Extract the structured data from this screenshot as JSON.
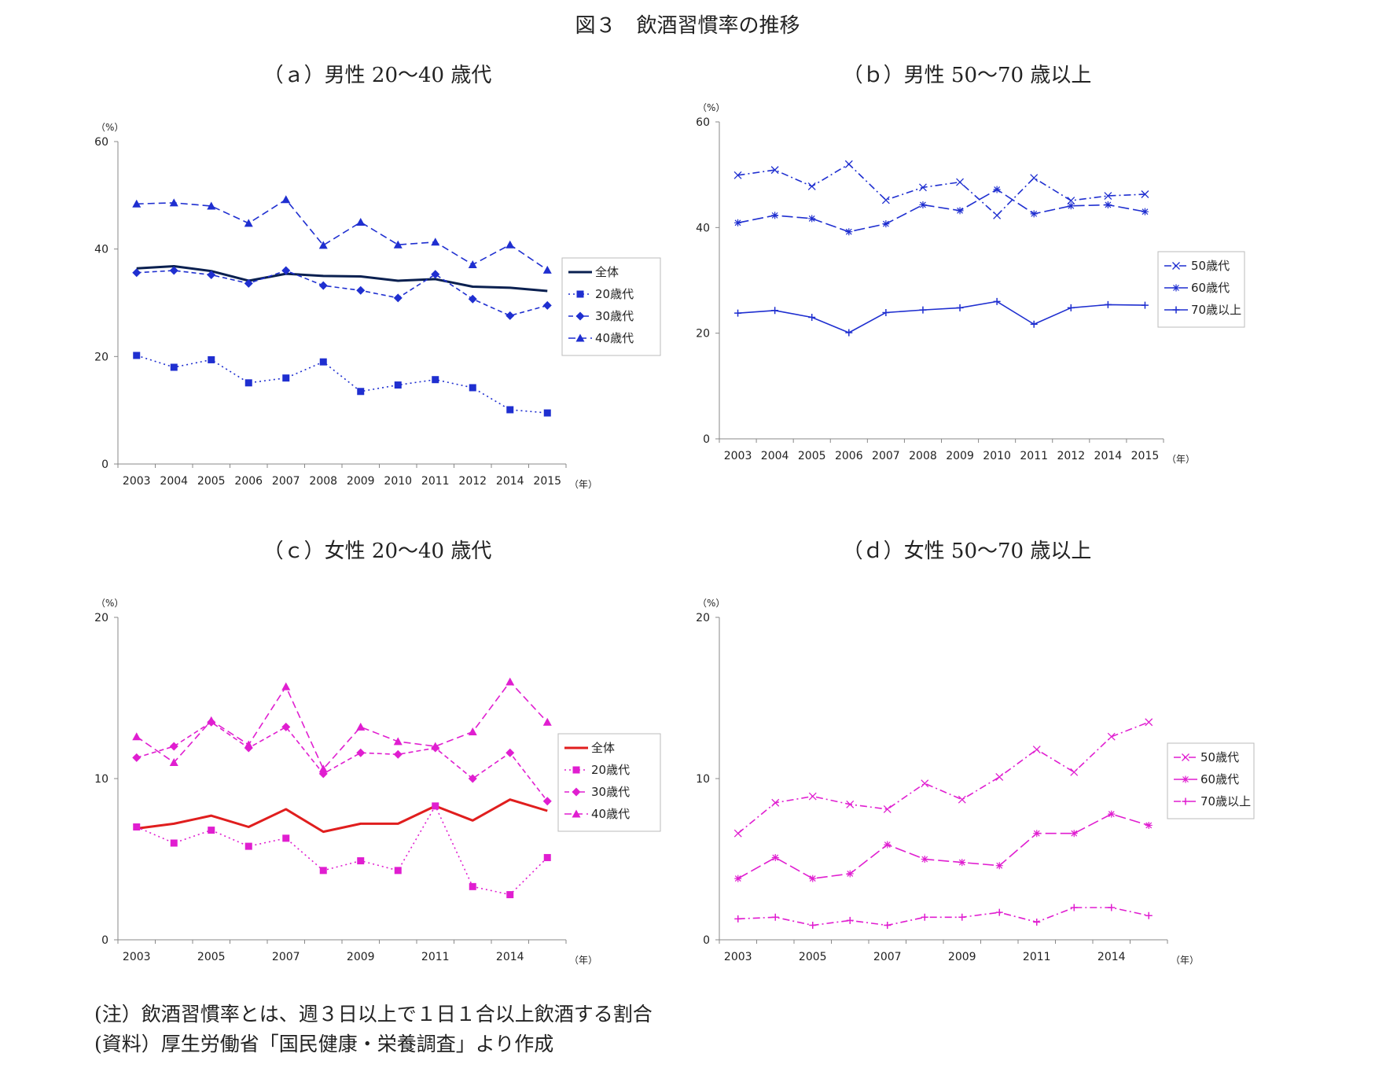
{
  "figure_title": "図３　飲酒習慣率の推移",
  "notes": {
    "note1": "(注）飲酒習慣率とは、週３日以上で１日１合以上飲酒する割合",
    "note2": "(資料）厚生労働省「国民健康・栄養調査」より作成"
  },
  "colors": {
    "navy": "#0a2050",
    "blue": "#1f2fd0",
    "red": "#e01e1e",
    "magenta": "#e01ed0"
  },
  "chart_data": [
    {
      "id": "a",
      "type": "line",
      "title": "（ａ）男性 20～40 歳代",
      "ylabel": "（%）",
      "xlabel": "（年）",
      "ylim": [
        0,
        60
      ],
      "yticks": [
        0,
        20,
        40,
        60
      ],
      "categories": [
        "2003",
        "2004",
        "2005",
        "2006",
        "2007",
        "2008",
        "2009",
        "2010",
        "2011",
        "2012",
        "2014",
        "2015"
      ],
      "xtick_labels": [
        "2003",
        "2004",
        "2005",
        "2006",
        "2007",
        "2008",
        "2009",
        "2010",
        "2011",
        "2012",
        "2014",
        "2015"
      ],
      "legend": "right",
      "series": [
        {
          "name": "全体",
          "color": "#0a2050",
          "dash": "solid",
          "marker": "none",
          "values": [
            36.4,
            36.8,
            35.9,
            34.1,
            35.4,
            35.0,
            34.9,
            34.1,
            34.4,
            33.0,
            32.8,
            32.2
          ]
        },
        {
          "name": "20歳代",
          "color": "#1f2fd0",
          "dash": "dot",
          "marker": "square",
          "values": [
            20.2,
            18.0,
            19.4,
            15.1,
            16.0,
            19.0,
            13.5,
            14.7,
            15.7,
            14.2,
            10.1,
            9.5
          ]
        },
        {
          "name": "30歳代",
          "color": "#1f2fd0",
          "dash": "shortdash",
          "marker": "diamond",
          "values": [
            35.6,
            36.0,
            35.2,
            33.6,
            36.0,
            33.2,
            32.3,
            30.9,
            35.3,
            30.7,
            27.6,
            29.5
          ]
        },
        {
          "name": "40歳代",
          "color": "#1f2fd0",
          "dash": "dash",
          "marker": "triangle",
          "values": [
            48.4,
            48.6,
            48.0,
            44.8,
            49.2,
            40.7,
            45.0,
            40.8,
            41.3,
            37.1,
            40.8,
            36.1
          ]
        }
      ]
    },
    {
      "id": "b",
      "type": "line",
      "title": "（ｂ）男性 50～70 歳以上",
      "ylabel": "（%）",
      "xlabel": "（年）",
      "ylim": [
        0,
        60
      ],
      "yticks": [
        0,
        20,
        40,
        60
      ],
      "categories": [
        "2003",
        "2004",
        "2005",
        "2006",
        "2007",
        "2008",
        "2009",
        "2010",
        "2011",
        "2012",
        "2014",
        "2015"
      ],
      "xtick_labels": [
        "2003",
        "2004",
        "2005",
        "2006",
        "2007",
        "2008",
        "2009",
        "2010",
        "2011",
        "2012",
        "2014",
        "2015"
      ],
      "legend": "right",
      "series": [
        {
          "name": "50歳代",
          "color": "#1f2fd0",
          "dash": "dashdot",
          "marker": "x",
          "values": [
            49.9,
            50.9,
            47.8,
            52.0,
            45.2,
            47.6,
            48.6,
            42.3,
            49.4,
            45.1,
            46.0,
            46.3
          ]
        },
        {
          "name": "60歳代",
          "color": "#1f2fd0",
          "dash": "longdash",
          "marker": "star",
          "values": [
            40.9,
            42.3,
            41.7,
            39.2,
            40.7,
            44.3,
            43.2,
            47.2,
            42.6,
            44.1,
            44.3,
            43.0
          ]
        },
        {
          "name": "70歳以上",
          "color": "#1f2fd0",
          "dash": "solid",
          "marker": "plus",
          "values": [
            23.8,
            24.3,
            23.0,
            20.1,
            23.9,
            24.4,
            24.8,
            26.0,
            21.7,
            24.8,
            25.4,
            25.3
          ]
        }
      ]
    },
    {
      "id": "c",
      "type": "line",
      "title": "（ｃ）女性 20～40 歳代",
      "ylabel": "（%）",
      "xlabel": "（年）",
      "ylim": [
        0,
        20
      ],
      "yticks": [
        0,
        10,
        20
      ],
      "categories": [
        "2003",
        "2004",
        "2005",
        "2006",
        "2007",
        "2008",
        "2009",
        "2010",
        "2011",
        "2012",
        "2014",
        "2015"
      ],
      "xtick_labels": [
        "2003",
        "",
        "2005",
        "",
        "2007",
        "",
        "2009",
        "",
        "2011",
        "",
        "2014",
        ""
      ],
      "legend": "right",
      "series": [
        {
          "name": "全体",
          "color": "#e01e1e",
          "dash": "solid",
          "marker": "none",
          "values": [
            6.9,
            7.2,
            7.7,
            7.0,
            8.1,
            6.7,
            7.2,
            7.2,
            8.3,
            7.4,
            8.7,
            8.0
          ]
        },
        {
          "name": "20歳代",
          "color": "#e01ed0",
          "dash": "dot",
          "marker": "square",
          "values": [
            7.0,
            6.0,
            6.8,
            5.8,
            6.3,
            4.3,
            4.9,
            4.3,
            8.3,
            3.3,
            2.8,
            5.1
          ]
        },
        {
          "name": "30歳代",
          "color": "#e01ed0",
          "dash": "shortdash",
          "marker": "diamond",
          "values": [
            11.3,
            12.0,
            13.5,
            11.9,
            13.2,
            10.3,
            11.6,
            11.5,
            11.9,
            10.0,
            11.6,
            8.6
          ]
        },
        {
          "name": "40歳代",
          "color": "#e01ed0",
          "dash": "dash",
          "marker": "triangle",
          "values": [
            12.6,
            11.0,
            13.6,
            12.1,
            15.7,
            10.6,
            13.2,
            12.3,
            12.0,
            12.9,
            16.0,
            13.5
          ]
        }
      ]
    },
    {
      "id": "d",
      "type": "line",
      "title": "（ｄ）女性 50～70 歳以上",
      "ylabel": "（%）",
      "xlabel": "（年）",
      "ylim": [
        0,
        20
      ],
      "yticks": [
        0,
        10,
        20
      ],
      "categories": [
        "2003",
        "2004",
        "2005",
        "2006",
        "2007",
        "2008",
        "2009",
        "2010",
        "2011",
        "2012",
        "2014",
        "2015"
      ],
      "xtick_labels": [
        "2003",
        "",
        "2005",
        "",
        "2007",
        "",
        "2009",
        "",
        "2011",
        "",
        "2014",
        ""
      ],
      "legend": "right",
      "series": [
        {
          "name": "50歳代",
          "color": "#e01ed0",
          "dash": "dashdot",
          "marker": "x",
          "values": [
            6.6,
            8.5,
            8.9,
            8.4,
            8.1,
            9.7,
            8.7,
            10.1,
            11.8,
            10.4,
            12.6,
            13.5
          ]
        },
        {
          "name": "60歳代",
          "color": "#e01ed0",
          "dash": "longdash",
          "marker": "star",
          "values": [
            3.8,
            5.1,
            3.8,
            4.1,
            5.9,
            5.0,
            4.8,
            4.6,
            6.6,
            6.6,
            7.8,
            7.1
          ]
        },
        {
          "name": "70歳以上",
          "color": "#e01ed0",
          "dash": "dashdot",
          "marker": "plus",
          "values": [
            1.3,
            1.4,
            0.9,
            1.2,
            0.9,
            1.4,
            1.4,
            1.7,
            1.1,
            2.0,
            2.0,
            1.5
          ]
        }
      ]
    }
  ]
}
